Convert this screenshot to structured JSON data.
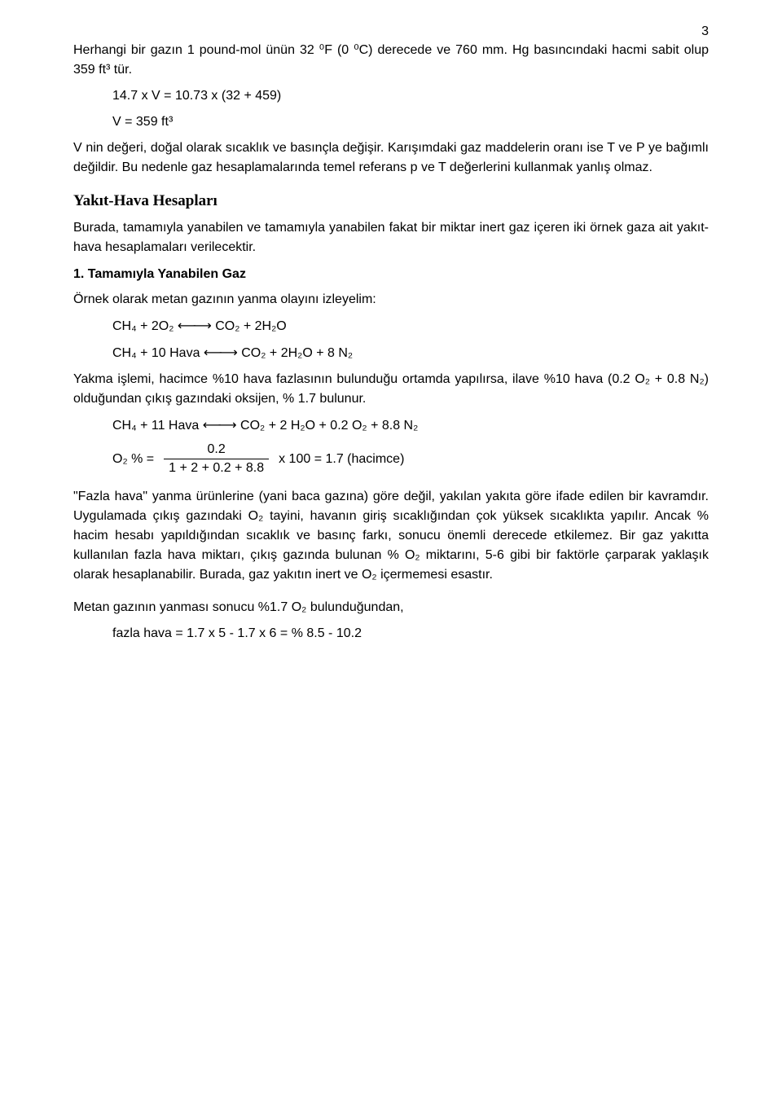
{
  "page_number": "3",
  "para1": "Herhangi bir gazın 1 pound-mol ünün 32 ⁰F (0 ⁰C) derecede ve 760 mm. Hg basıncındaki hacmi sabit olup 359 ft³ tür.",
  "eq1": "14.7 x V = 10.73 x (32 + 459)",
  "eq2": "V = 359 ft³",
  "para2": "V nin değeri, doğal olarak sıcaklık ve basınçla değişir. Karışımdaki gaz maddelerin oranı ise T ve P ye bağımlı değildir. Bu nedenle gaz hesaplamalarında temel referans p ve T değerlerini kullanmak yanlış olmaz.",
  "heading1": "Yakıt-Hava Hesapları",
  "para3": "Burada, tamamıyla yanabilen ve tamamıyla yanabilen fakat bir miktar inert gaz içeren iki örnek gaza ait yakıt-hava hesaplamaları verilecektir.",
  "subheading1": "1. Tamamıyla Yanabilen Gaz",
  "para4": "Örnek olarak metan gazının yanma olayını izleyelim:",
  "rxn1_lhs": "CH₄ + 2O₂ ",
  "rxn1_arrow": "⟵⟶",
  "rxn1_rhs": " CO₂ + 2H₂O",
  "rxn2_lhs": "CH₄ + 10 Hava ",
  "rxn2_arrow": "⟵⟶",
  "rxn2_rhs": " CO₂ + 2H₂O + 8 N₂",
  "para5": "Yakma işlemi, hacimce %10 hava fazlasının bulunduğu ortamda yapılırsa, ilave %10 hava (0.2 O₂ + 0.8 N₂) olduğundan çıkış gazındaki oksijen, % 1.7 bulunur.",
  "rxn3_lhs": "CH₄ + 11 Hava ",
  "rxn3_arrow": "⟵⟶",
  "rxn3_rhs": " CO₂ + 2 H₂O + 0.2 O₂ + 8.8 N₂",
  "frac_left": "O₂ % =",
  "frac_num": "0.2",
  "frac_den": "1 + 2 + 0.2 + 8.8",
  "frac_right": "x 100 = 1.7   (hacimce)",
  "para6": "\"Fazla hava\" yanma ürünlerine (yani baca gazına) göre değil, yakılan yakıta göre ifade edilen bir kavramdır. Uygulamada çıkış gazındaki O₂ tayini, havanın giriş sıcaklığından çok yüksek sıcaklıkta yapılır. Ancak % hacim hesabı yapıldığından sıcaklık ve basınç farkı, sonucu önemli derecede etkilemez. Bir gaz yakıtta kullanılan fazla hava miktarı, çıkış gazında bulunan % O₂ miktarını, 5-6 gibi bir faktörle çarparak yaklaşık olarak hesaplanabilir. Burada, gaz yakıtın inert ve O₂ içermemesi esastır.",
  "para7": "Metan gazının yanması sonucu %1.7 O₂ bulunduğundan,",
  "eq3": "fazla hava = 1.7 x 5 - 1.7 x 6 = % 8.5 - 10.2"
}
